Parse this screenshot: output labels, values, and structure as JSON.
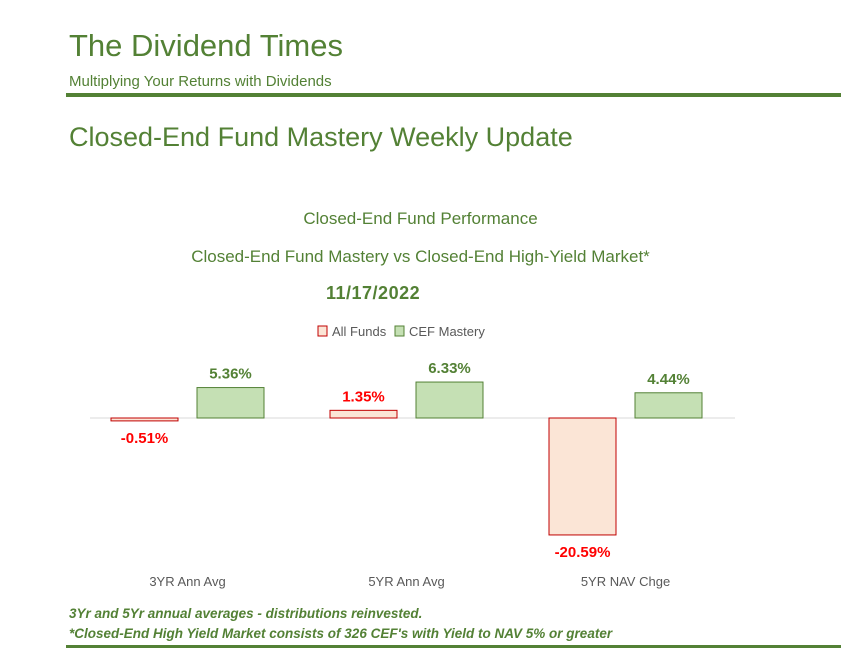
{
  "header": {
    "title": "The Dividend Times",
    "tagline": "Multiplying Your Returns with Dividends"
  },
  "section_title": "Closed-End Fund Mastery Weekly Update",
  "chart_data": {
    "type": "bar",
    "title": "Closed-End Fund Performance",
    "subtitle": "Closed-End Fund Mastery vs Closed-End High-Yield Market*",
    "date": "11/17/2022",
    "categories": [
      "3YR Ann Avg",
      "5YR Ann Avg",
      "5YR NAV Chge"
    ],
    "series": [
      {
        "name": "All Funds",
        "values": [
          -0.51,
          1.35,
          -20.59
        ],
        "labels": [
          "-0.51%",
          "1.35%",
          "-20.59%"
        ],
        "fill": "#fbe5d6",
        "stroke": "#c00000",
        "label_color": "#ff0000"
      },
      {
        "name": "CEF Mastery",
        "values": [
          5.36,
          6.33,
          4.44
        ],
        "labels": [
          "5.36%",
          "6.33%",
          "4.44%"
        ],
        "fill": "#c5e0b4",
        "stroke": "#538135",
        "label_color": "#538135"
      }
    ],
    "legend": "top",
    "grid": false,
    "unit": "%"
  },
  "footnotes": [
    "3Yr and 5Yr annual averages - distributions reinvested.",
    "*Closed-End High Yield Market consists of 326 CEF's with Yield to NAV 5% or greater"
  ]
}
